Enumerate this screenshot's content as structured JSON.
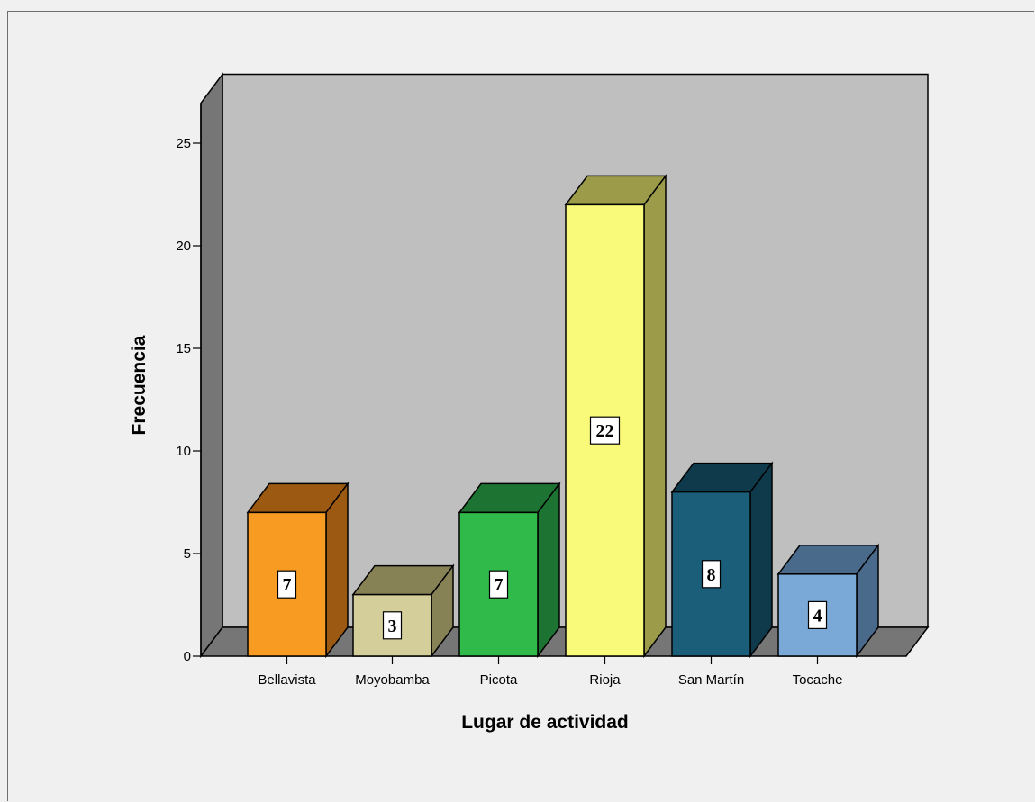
{
  "chart_data": {
    "type": "bar",
    "xlabel": "Lugar de actividad",
    "ylabel": "Frecuencia",
    "categories": [
      "Bellavista",
      "Moyobamba",
      "Picota",
      "Rioja",
      "San Martín",
      "Tocache"
    ],
    "values": [
      7,
      3,
      7,
      22,
      8,
      4
    ],
    "data_labels": [
      "7",
      "3",
      "7",
      "22",
      "8",
      "4"
    ],
    "ylim": [
      0,
      25
    ],
    "yticks": [
      0,
      5,
      10,
      15,
      20,
      25
    ],
    "ytick_labels": [
      "0",
      "5",
      "10",
      "15",
      "20",
      "25"
    ],
    "style": "3d",
    "grid": false,
    "legend": "none",
    "colors": {
      "bars": [
        {
          "front": "#f89b22",
          "side": "#9c5912",
          "top": "#9c5912"
        },
        {
          "front": "#d4cf9a",
          "side": "#878256",
          "top": "#878256"
        },
        {
          "front": "#2fba4a",
          "side": "#1d7331",
          "top": "#1d7331"
        },
        {
          "front": "#fafa7a",
          "side": "#9b9b4a",
          "top": "#9b9b4a"
        },
        {
          "front": "#1a5e79",
          "side": "#0f3a4b",
          "top": "#0f3a4b"
        },
        {
          "front": "#7aa9d8",
          "side": "#4a6a8c",
          "top": "#4a6a8c"
        }
      ],
      "back_wall": "#bfbfbf",
      "side_wall": "#767676",
      "floor": "#767676",
      "background": "#f0f0f0"
    }
  }
}
